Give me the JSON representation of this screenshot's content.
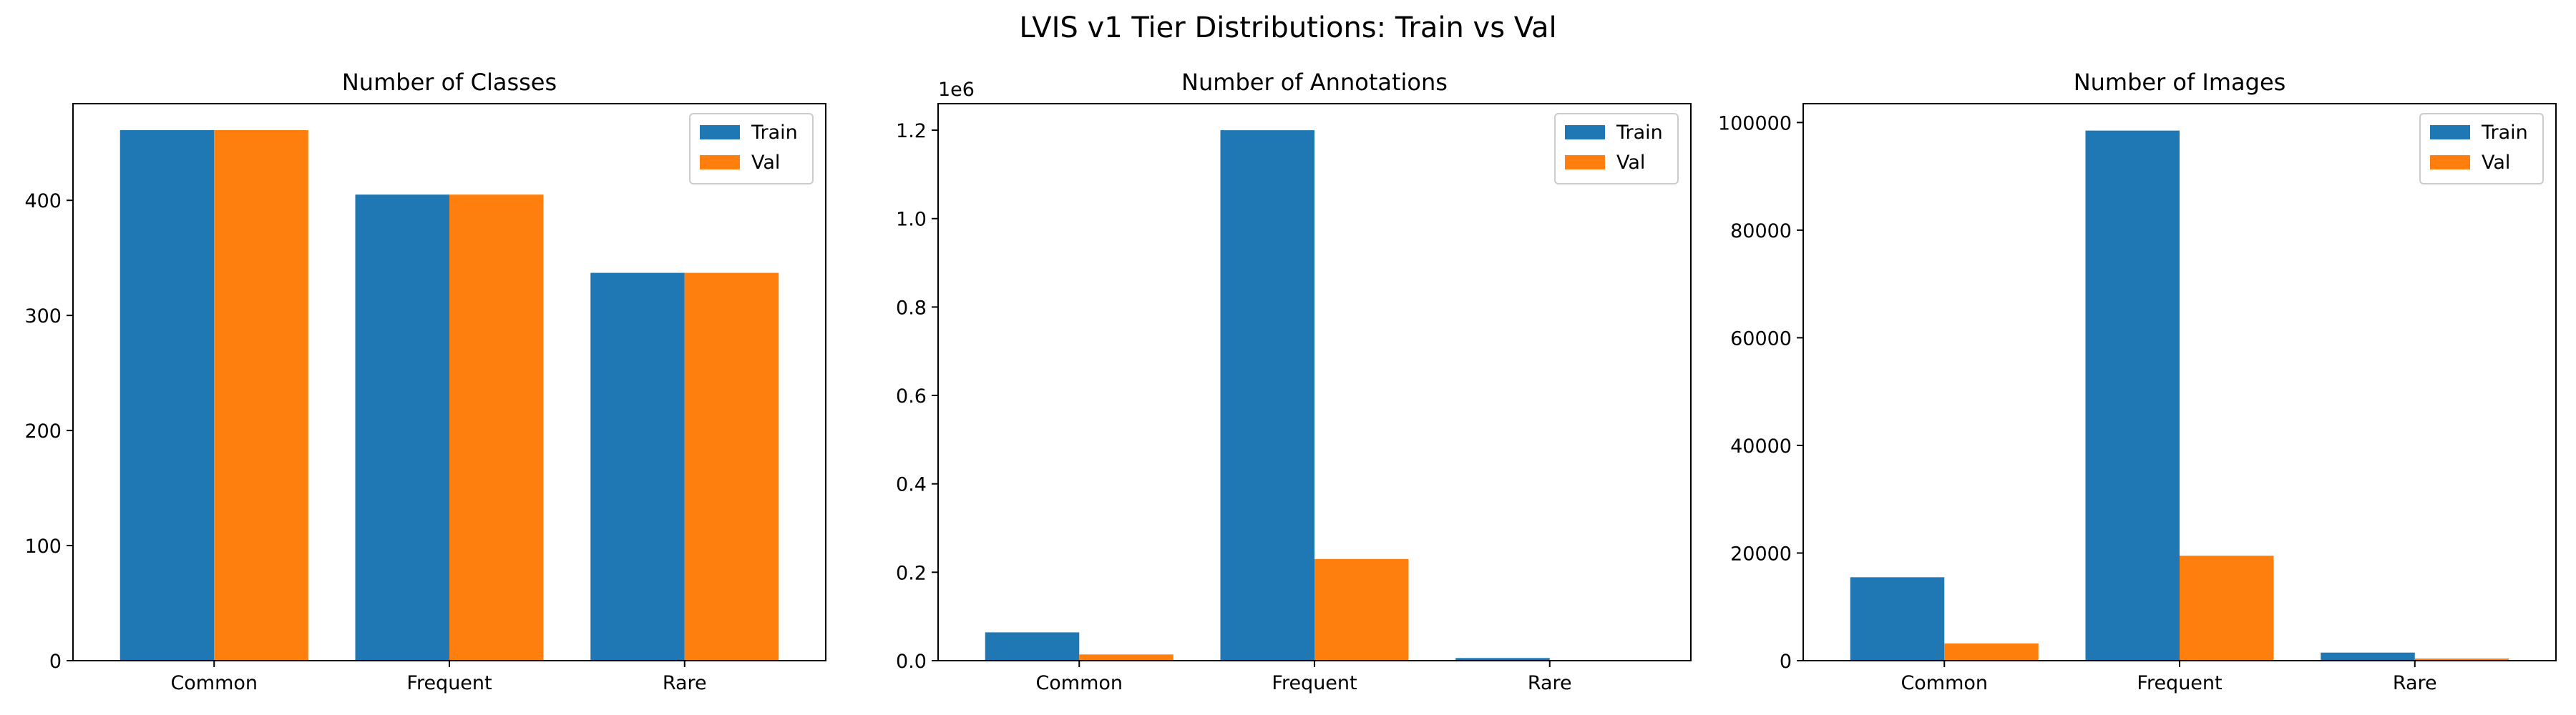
{
  "figure": {
    "title": "LVIS v1 Tier Distributions: Train vs Val"
  },
  "colors": {
    "train": "#1f77b4",
    "val": "#ff7f0e",
    "axis": "#000000",
    "legend_border": "#cccccc"
  },
  "chart_data": [
    {
      "type": "bar",
      "title": "Number of Classes",
      "categories": [
        "Common",
        "Frequent",
        "Rare"
      ],
      "series": [
        {
          "name": "Train",
          "values": [
            461,
            405,
            337
          ]
        },
        {
          "name": "Val",
          "values": [
            461,
            405,
            337
          ]
        }
      ],
      "ylim": [
        0,
        484
      ],
      "yticks": [
        0,
        100,
        200,
        300,
        400
      ],
      "ytick_labels": [
        "0",
        "100",
        "200",
        "300",
        "400"
      ],
      "y_offset_label": "",
      "legend": "top-right",
      "grid": false
    },
    {
      "type": "bar",
      "title": "Number of Annotations",
      "categories": [
        "Common",
        "Frequent",
        "Rare"
      ],
      "series": [
        {
          "name": "Train",
          "values": [
            64000,
            1200000,
            6000
          ]
        },
        {
          "name": "Val",
          "values": [
            14000,
            230000,
            1000
          ]
        }
      ],
      "ylim": [
        0,
        1260000
      ],
      "yticks": [
        0,
        200000,
        400000,
        600000,
        800000,
        1000000,
        1200000
      ],
      "ytick_labels": [
        "0.0",
        "0.2",
        "0.4",
        "0.6",
        "0.8",
        "1.0",
        "1.2"
      ],
      "y_offset_label": "1e6",
      "legend": "top-right",
      "grid": false
    },
    {
      "type": "bar",
      "title": "Number of Images",
      "categories": [
        "Common",
        "Frequent",
        "Rare"
      ],
      "series": [
        {
          "name": "Train",
          "values": [
            15500,
            98500,
            1500
          ]
        },
        {
          "name": "Val",
          "values": [
            3200,
            19500,
            400
          ]
        }
      ],
      "ylim": [
        0,
        103500
      ],
      "yticks": [
        0,
        20000,
        40000,
        60000,
        80000,
        100000
      ],
      "ytick_labels": [
        "0",
        "20000",
        "40000",
        "60000",
        "80000",
        "100000"
      ],
      "y_offset_label": "",
      "legend": "top-right",
      "grid": false
    }
  ]
}
